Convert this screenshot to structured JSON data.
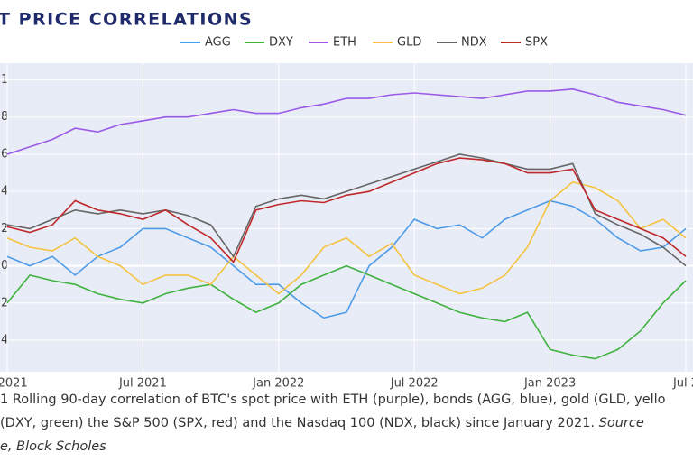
{
  "chart_data": {
    "type": "line",
    "title": "T PRICE CORRELATIONS",
    "x": [
      "2021-01",
      "2021-02",
      "2021-03",
      "2021-04",
      "2021-05",
      "2021-06",
      "2021-07",
      "2021-08",
      "2021-09",
      "2021-10",
      "2021-11",
      "2021-12",
      "2022-01",
      "2022-02",
      "2022-03",
      "2022-04",
      "2022-05",
      "2022-06",
      "2022-07",
      "2022-08",
      "2022-09",
      "2022-10",
      "2022-11",
      "2022-12",
      "2023-01",
      "2023-02",
      "2023-03",
      "2023-04",
      "2023-05",
      "2023-06",
      "2023-07"
    ],
    "series": [
      {
        "name": "AGG",
        "color": "#4e9be8",
        "values": [
          0.05,
          0,
          0.05,
          -0.05,
          0.05,
          0.1,
          0.2,
          0.2,
          0.15,
          0.1,
          0,
          -0.1,
          -0.1,
          -0.2,
          -0.28,
          -0.25,
          0,
          0.1,
          0.25,
          0.2,
          0.22,
          0.15,
          0.25,
          0.3,
          0.35,
          0.32,
          0.25,
          0.15,
          0.08,
          0.1,
          0.2
        ]
      },
      {
        "name": "DXY",
        "color": "#3fb23f",
        "values": [
          -0.2,
          -0.05,
          -0.08,
          -0.1,
          -0.15,
          -0.18,
          -0.2,
          -0.15,
          -0.12,
          -0.1,
          -0.18,
          -0.25,
          -0.2,
          -0.1,
          -0.05,
          0,
          -0.05,
          -0.1,
          -0.15,
          -0.2,
          -0.25,
          -0.28,
          -0.3,
          -0.25,
          -0.45,
          -0.48,
          -0.5,
          -0.45,
          -0.35,
          -0.2,
          -0.08
        ]
      },
      {
        "name": "ETH",
        "color": "#9b59e8",
        "values": [
          0.6,
          0.64,
          0.68,
          0.74,
          0.72,
          0.76,
          0.78,
          0.8,
          0.8,
          0.82,
          0.84,
          0.82,
          0.82,
          0.85,
          0.87,
          0.9,
          0.9,
          0.92,
          0.93,
          0.92,
          0.91,
          0.9,
          0.92,
          0.94,
          0.94,
          0.95,
          0.92,
          0.88,
          0.86,
          0.84,
          0.81
        ]
      },
      {
        "name": "GLD",
        "color": "#f5c342",
        "values": [
          0.15,
          0.1,
          0.08,
          0.15,
          0.05,
          0,
          -0.1,
          -0.05,
          -0.05,
          -0.1,
          0.05,
          -0.05,
          -0.15,
          -0.05,
          0.1,
          0.15,
          0.05,
          0.12,
          -0.05,
          -0.1,
          -0.15,
          -0.12,
          -0.05,
          0.1,
          0.35,
          0.45,
          0.42,
          0.35,
          0.2,
          0.25,
          0.15
        ]
      },
      {
        "name": "NDX",
        "color": "#666666",
        "values": [
          0.22,
          0.2,
          0.25,
          0.3,
          0.28,
          0.3,
          0.28,
          0.3,
          0.27,
          0.22,
          0.05,
          0.32,
          0.36,
          0.38,
          0.36,
          0.4,
          0.44,
          0.48,
          0.52,
          0.56,
          0.6,
          0.58,
          0.55,
          0.52,
          0.52,
          0.55,
          0.28,
          0.22,
          0.17,
          0.1,
          0
        ]
      },
      {
        "name": "SPX",
        "color": "#c0282a",
        "values": [
          0.21,
          0.18,
          0.22,
          0.35,
          0.3,
          0.28,
          0.25,
          0.3,
          0.22,
          0.15,
          0.02,
          0.3,
          0.33,
          0.35,
          0.34,
          0.38,
          0.4,
          0.45,
          0.5,
          0.55,
          0.58,
          0.57,
          0.55,
          0.5,
          0.5,
          0.52,
          0.3,
          0.25,
          0.2,
          0.15,
          0.05
        ]
      }
    ],
    "xlim": [
      "2021-01",
      "2023-07"
    ],
    "xticks": [
      {
        "value": "2021-01",
        "label": "n 2021"
      },
      {
        "value": "2021-07",
        "label": "Jul 2021"
      },
      {
        "value": "2022-01",
        "label": "Jan 2022"
      },
      {
        "value": "2022-07",
        "label": "Jul 2022"
      },
      {
        "value": "2023-01",
        "label": "Jan 2023"
      },
      {
        "value": "2023-07",
        "label": "Jul 2"
      }
    ],
    "ylim": [
      -0.57,
      1.09
    ],
    "yticks": [
      1,
      {
        "value": 0.8,
        "label": "8"
      },
      {
        "value": 0.6,
        "label": "6"
      },
      {
        "value": 0.4,
        "label": "4"
      },
      {
        "value": 0.2,
        "label": "2"
      },
      0,
      {
        "value": -0.2,
        "label": "2"
      },
      {
        "value": -0.4,
        "label": "4"
      }
    ],
    "grid": true,
    "legend": "top"
  },
  "caption": {
    "line1": "1 Rolling 90-day correlation of BTC's spot price with ETH (purple), bonds (AGG, blue), gold (GLD, yello",
    "line2": "(DXY, green) the S&P 500 (SPX, red) and the Nasdaq 100 (NDX, black) since January 2021. ",
    "line2_source": "Source",
    "line3": "e, Block Scholes"
  }
}
